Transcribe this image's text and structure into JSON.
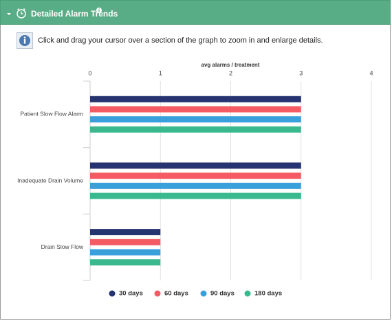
{
  "header": {
    "title": "Detailed Alarm Trends"
  },
  "info_text": "Click and drag your cursor over a section of the graph to zoom in and enlarge details.",
  "chart_data": {
    "type": "bar",
    "orientation": "horizontal",
    "x_label": "avg alarms / treatment",
    "categories": [
      "Patient Slow Flow Alarm",
      "Inadequate Drain Volume",
      "Drain Slow Flow"
    ],
    "series": [
      {
        "name": "30 days",
        "color": "#253370",
        "values": [
          3,
          3,
          1
        ]
      },
      {
        "name": "60 days",
        "color": "#f45b63",
        "values": [
          3,
          3,
          1
        ]
      },
      {
        "name": "90 days",
        "color": "#3aa0dc",
        "values": [
          3,
          3,
          1
        ]
      },
      {
        "name": "180 days",
        "color": "#3ab98f",
        "values": [
          3,
          3,
          1
        ]
      }
    ],
    "xlim": [
      0,
      4
    ],
    "xticks": [
      0,
      1,
      2,
      3,
      4
    ],
    "grid": true,
    "legend": "bottom"
  }
}
